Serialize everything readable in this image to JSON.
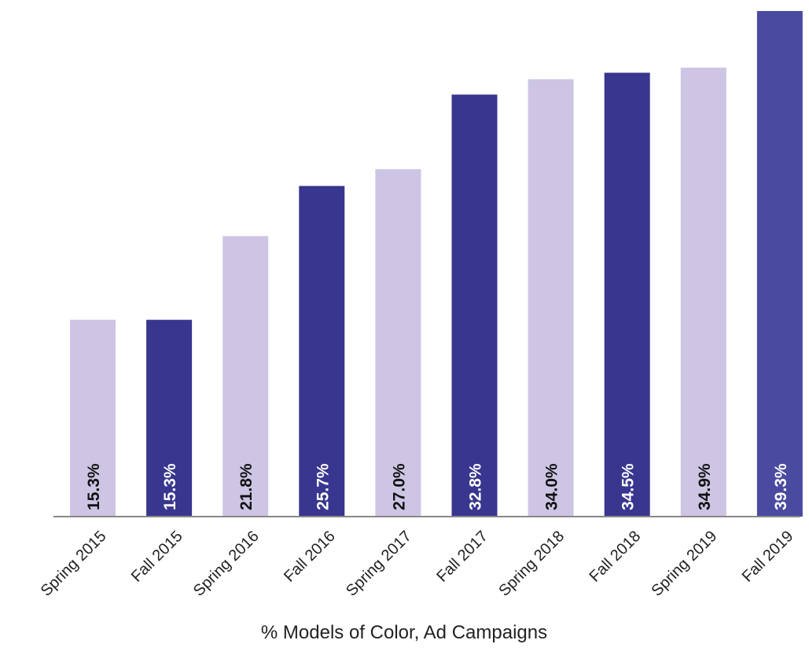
{
  "chart_data": {
    "type": "bar",
    "title": "",
    "xlabel": "% Models of Color, Ad Campaigns",
    "ylabel": "",
    "categories": [
      "Spring 2015",
      "Fall 2015",
      "Spring 2016",
      "Fall 2016",
      "Spring 2017",
      "Fall 2017",
      "Spring 2018",
      "Fall 2018",
      "Spring 2019",
      "Fall 2019"
    ],
    "values": [
      15.3,
      15.3,
      21.8,
      25.7,
      27.0,
      32.8,
      34.0,
      34.5,
      34.9,
      39.3
    ],
    "value_labels": [
      "15.3%",
      "15.3%",
      "21.8%",
      "25.7%",
      "27.0%",
      "32.8%",
      "34.0%",
      "34.5%",
      "34.9%",
      "39.3%"
    ],
    "ylim": [
      0,
      39.3
    ],
    "grid": false,
    "legend": "none",
    "colors": {
      "spring": "#cdc5e3",
      "fall": "#38368f",
      "fall_2019": "#4a4aa0",
      "label_on_light": "#111111",
      "label_on_dark": "#ffffff",
      "axis": "#888888"
    }
  }
}
